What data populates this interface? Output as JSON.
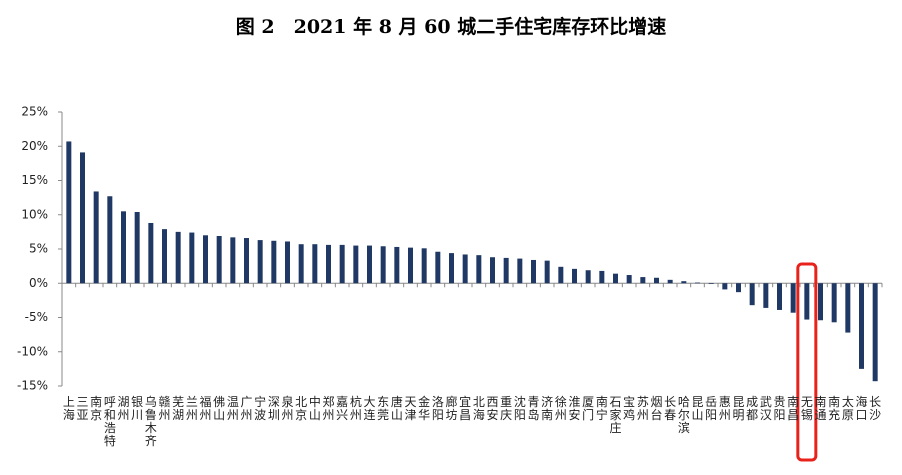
{
  "chart_data": {
    "type": "bar",
    "title": "图 2　2021 年 8 月 60 城二手住宅库存环比增速",
    "categories": [
      "上海",
      "三亚",
      "南京",
      "呼和浩特",
      "湖州",
      "银川",
      "乌鲁木齐",
      "赣州",
      "芜湖",
      "兰州",
      "福州",
      "佛山",
      "温州",
      "广州",
      "宁波",
      "深圳",
      "泉州",
      "北京",
      "中山",
      "郑州",
      "嘉兴",
      "杭州",
      "大连",
      "东莞",
      "唐山",
      "天津",
      "金华",
      "洛阳",
      "廊坊",
      "宜昌",
      "北海",
      "西安",
      "重庆",
      "沈阳",
      "青岛",
      "济南",
      "徐州",
      "淮安",
      "厦门",
      "南宁",
      "石家庄",
      "宝鸡",
      "苏州",
      "烟台",
      "长春",
      "哈尔滨",
      "昆山",
      "岳阳",
      "惠州",
      "昆明",
      "成都",
      "武汉",
      "贵阳",
      "南昌",
      "无锡",
      "南通",
      "南充",
      "太原",
      "海口",
      "长沙"
    ],
    "values": [
      20.7,
      19.1,
      13.4,
      12.7,
      10.5,
      10.4,
      8.8,
      7.9,
      7.5,
      7.4,
      7.0,
      6.9,
      6.7,
      6.6,
      6.3,
      6.2,
      6.1,
      5.7,
      5.7,
      5.6,
      5.6,
      5.5,
      5.5,
      5.4,
      5.3,
      5.2,
      5.1,
      4.6,
      4.4,
      4.2,
      4.1,
      3.8,
      3.7,
      3.6,
      3.4,
      3.3,
      2.4,
      2.1,
      1.9,
      1.8,
      1.4,
      1.2,
      0.9,
      0.8,
      0.5,
      0.3,
      0.1,
      -0.1,
      -0.9,
      -1.3,
      -3.2,
      -3.6,
      -3.9,
      -4.3,
      -5.3,
      -5.4,
      -5.7,
      -7.2,
      -12.5,
      -14.3
    ],
    "color": "#1f3864",
    "ylim": [
      -15,
      25
    ],
    "yticks": [
      {
        "value": -15,
        "label": "-15%"
      },
      {
        "value": -10,
        "label": "-10%"
      },
      {
        "value": -5,
        "label": "-5%"
      },
      {
        "value": 0,
        "label": "0%"
      },
      {
        "value": 5,
        "label": "5%"
      },
      {
        "value": 10,
        "label": "10%"
      },
      {
        "value": 15,
        "label": "15%"
      },
      {
        "value": 20,
        "label": "20%"
      },
      {
        "value": 25,
        "label": "25%"
      }
    ],
    "grid": false
  }
}
